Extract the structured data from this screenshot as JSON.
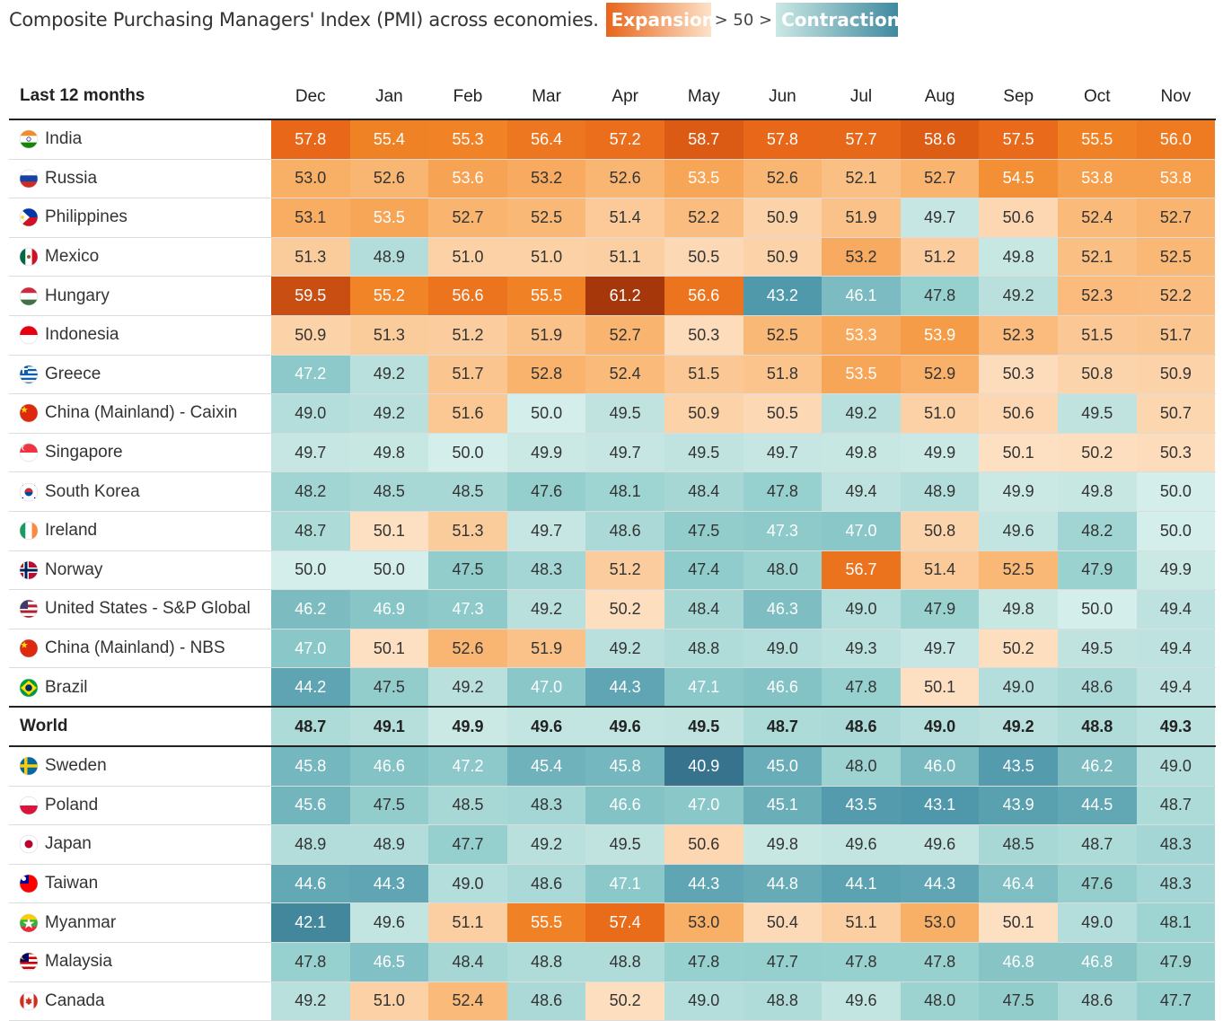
{
  "title": "Composite Purchasing Managers' Index (PMI) across economies.",
  "legend": {
    "expansion": "Expansion",
    "middle": "> 50 >",
    "contraction": "Contraction"
  },
  "header_label": "Last 12 months",
  "chart_data": {
    "type": "heatmap",
    "title": "Composite Purchasing Managers' Index (PMI) across economies.",
    "threshold": 50,
    "months": [
      "Dec",
      "Jan",
      "Feb",
      "Mar",
      "Apr",
      "May",
      "Jun",
      "Jul",
      "Aug",
      "Sep",
      "Oct",
      "Nov"
    ],
    "rows_above": [
      {
        "name": "India",
        "flag": "in",
        "values": [
          57.8,
          55.4,
          55.3,
          56.4,
          57.2,
          58.7,
          57.8,
          57.7,
          58.6,
          57.5,
          55.5,
          56.0
        ]
      },
      {
        "name": "Russia",
        "flag": "ru",
        "values": [
          53.0,
          52.6,
          53.6,
          53.2,
          52.6,
          53.5,
          52.6,
          52.1,
          52.7,
          54.5,
          53.8,
          53.8
        ]
      },
      {
        "name": "Philippines",
        "flag": "ph",
        "values": [
          53.1,
          53.5,
          52.7,
          52.5,
          51.4,
          52.2,
          50.9,
          51.9,
          49.7,
          50.6,
          52.4,
          52.7
        ]
      },
      {
        "name": "Mexico",
        "flag": "mx",
        "values": [
          51.3,
          48.9,
          51.0,
          51.0,
          51.1,
          50.5,
          50.9,
          53.2,
          51.2,
          49.8,
          52.1,
          52.5
        ]
      },
      {
        "name": "Hungary",
        "flag": "hu",
        "values": [
          59.5,
          55.2,
          56.6,
          55.5,
          61.2,
          56.6,
          43.2,
          46.1,
          47.8,
          49.2,
          52.3,
          52.2
        ]
      },
      {
        "name": "Indonesia",
        "flag": "id",
        "values": [
          50.9,
          51.3,
          51.2,
          51.9,
          52.7,
          50.3,
          52.5,
          53.3,
          53.9,
          52.3,
          51.5,
          51.7
        ]
      },
      {
        "name": "Greece",
        "flag": "gr",
        "values": [
          47.2,
          49.2,
          51.7,
          52.8,
          52.4,
          51.5,
          51.8,
          53.5,
          52.9,
          50.3,
          50.8,
          50.9
        ]
      },
      {
        "name": "China (Mainland) - Caixin",
        "flag": "cn",
        "values": [
          49.0,
          49.2,
          51.6,
          50.0,
          49.5,
          50.9,
          50.5,
          49.2,
          51.0,
          50.6,
          49.5,
          50.7
        ]
      },
      {
        "name": "Singapore",
        "flag": "sg",
        "values": [
          49.7,
          49.8,
          50.0,
          49.9,
          49.7,
          49.5,
          49.7,
          49.8,
          49.9,
          50.1,
          50.2,
          50.3
        ]
      },
      {
        "name": "South Korea",
        "flag": "kr",
        "values": [
          48.2,
          48.5,
          48.5,
          47.6,
          48.1,
          48.4,
          47.8,
          49.4,
          48.9,
          49.9,
          49.8,
          50.0
        ]
      },
      {
        "name": "Ireland",
        "flag": "ie",
        "values": [
          48.7,
          50.1,
          51.3,
          49.7,
          48.6,
          47.5,
          47.3,
          47.0,
          50.8,
          49.6,
          48.2,
          50.0
        ]
      },
      {
        "name": "Norway",
        "flag": "no",
        "values": [
          50.0,
          50.0,
          47.5,
          48.3,
          51.2,
          47.4,
          48.0,
          56.7,
          51.4,
          52.5,
          47.9,
          49.9
        ]
      },
      {
        "name": "United States - S&P Global",
        "flag": "us",
        "values": [
          46.2,
          46.9,
          47.3,
          49.2,
          50.2,
          48.4,
          46.3,
          49.0,
          47.9,
          49.8,
          50.0,
          49.4
        ]
      },
      {
        "name": "China (Mainland) - NBS",
        "flag": "cn",
        "values": [
          47.0,
          50.1,
          52.6,
          51.9,
          49.2,
          48.8,
          49.0,
          49.3,
          49.7,
          50.2,
          49.5,
          49.4
        ]
      },
      {
        "name": "Brazil",
        "flag": "br",
        "values": [
          44.2,
          47.5,
          49.2,
          47.0,
          44.3,
          47.1,
          46.6,
          47.8,
          50.1,
          49.0,
          48.6,
          49.4
        ]
      }
    ],
    "world": {
      "name": "World",
      "values": [
        48.7,
        49.1,
        49.9,
        49.6,
        49.6,
        49.5,
        48.7,
        48.6,
        49.0,
        49.2,
        48.8,
        49.3
      ]
    },
    "rows_below": [
      {
        "name": "Sweden",
        "flag": "se",
        "values": [
          45.8,
          46.6,
          47.2,
          45.4,
          45.8,
          40.9,
          45.0,
          48.0,
          46.0,
          43.5,
          46.2,
          49.0
        ]
      },
      {
        "name": "Poland",
        "flag": "pl",
        "values": [
          45.6,
          47.5,
          48.5,
          48.3,
          46.6,
          47.0,
          45.1,
          43.5,
          43.1,
          43.9,
          44.5,
          48.7
        ]
      },
      {
        "name": "Japan",
        "flag": "jp",
        "values": [
          48.9,
          48.9,
          47.7,
          49.2,
          49.5,
          50.6,
          49.8,
          49.6,
          49.6,
          48.5,
          48.7,
          48.3
        ]
      },
      {
        "name": "Taiwan",
        "flag": "tw",
        "values": [
          44.6,
          44.3,
          49.0,
          48.6,
          47.1,
          44.3,
          44.8,
          44.1,
          44.3,
          46.4,
          47.6,
          48.3
        ]
      },
      {
        "name": "Myanmar",
        "flag": "mm",
        "values": [
          42.1,
          49.6,
          51.1,
          55.5,
          57.4,
          53.0,
          50.4,
          51.1,
          53.0,
          50.1,
          49.0,
          48.1
        ]
      },
      {
        "name": "Malaysia",
        "flag": "my",
        "values": [
          47.8,
          46.5,
          48.4,
          48.8,
          48.8,
          47.8,
          47.7,
          47.8,
          47.8,
          46.8,
          46.8,
          47.9
        ]
      },
      {
        "name": "Canada",
        "flag": "ca",
        "values": [
          49.2,
          51.0,
          52.4,
          48.6,
          50.2,
          49.0,
          48.8,
          49.6,
          48.0,
          47.5,
          48.6,
          47.7
        ]
      }
    ]
  }
}
